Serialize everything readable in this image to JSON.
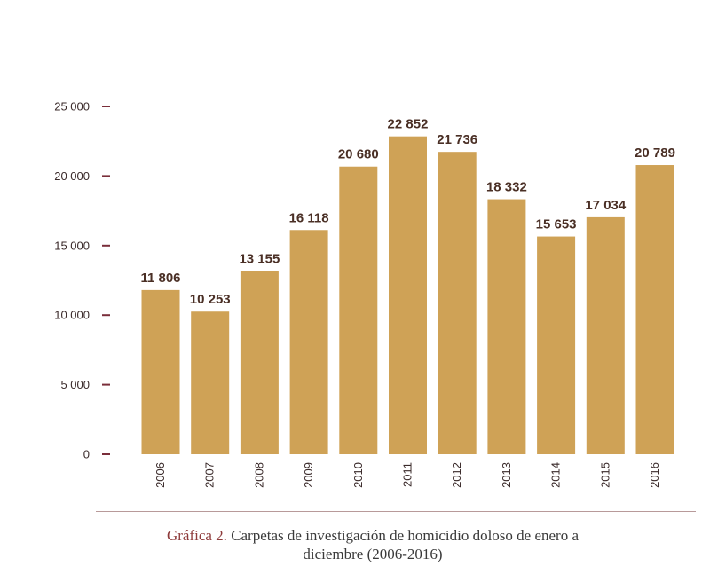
{
  "caption": {
    "prefix": "Gráfica 2.",
    "line1": "Carpetas de investigación de homicidio doloso de enero a",
    "line2": "diciembre (2006-2016)"
  },
  "colors": {
    "bar": "#cfa256",
    "tick": "#7a2e3a",
    "value_label": "#4a2f25"
  },
  "chart_data": {
    "type": "bar",
    "title": "",
    "xlabel": "",
    "ylabel": "",
    "categories": [
      "2006",
      "2007",
      "2008",
      "2009",
      "2010",
      "2011",
      "2012",
      "2013",
      "2014",
      "2015",
      "2016"
    ],
    "values": [
      11806,
      10253,
      13155,
      16118,
      20680,
      22852,
      21736,
      18332,
      15653,
      17034,
      20789
    ],
    "value_labels": [
      "11 806",
      "10 253",
      "13 155",
      "16 118",
      "20 680",
      "22 852",
      "21 736",
      "18 332",
      "15 653",
      "17 034",
      "20 789"
    ],
    "ylim": [
      0,
      25000
    ],
    "yticks": [
      0,
      5000,
      10000,
      15000,
      20000,
      25000
    ],
    "ytick_labels": [
      "0",
      "5 000",
      "10 000",
      "15 000",
      "20 000",
      "25 000"
    ],
    "grid": false,
    "legend": "none"
  }
}
